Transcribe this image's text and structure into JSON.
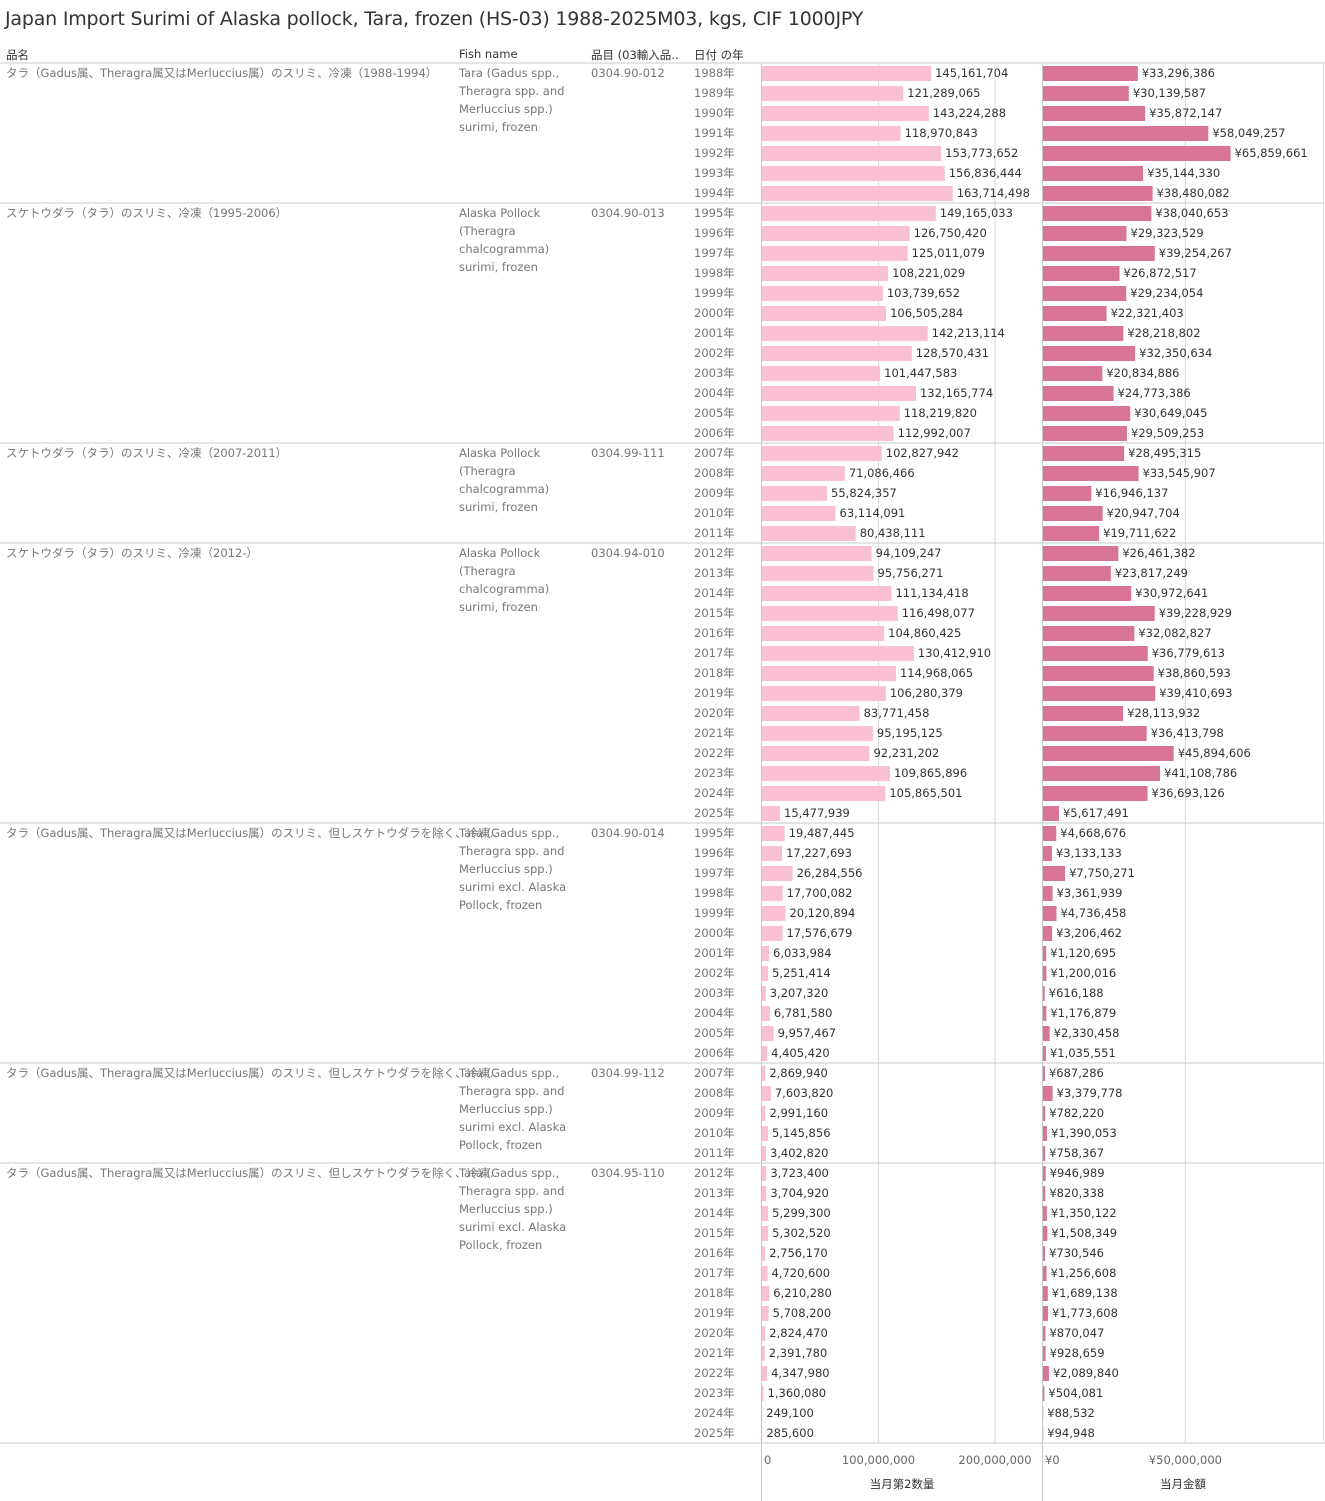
{
  "title": "Japan Import Surimi of Alaska pollock, Tara, frozen (HS-03) 1988-2025M03, kgs, CIF 1000JPY",
  "headers": {
    "name_jp": "品名",
    "fish_name": "Fish name",
    "code": "品目 (03輸入品..",
    "year": "日付 の年"
  },
  "colors": {
    "qty_bar": "#f9bfd3",
    "value_bar": "#d87495",
    "grid": "#d9d9d9"
  },
  "chart_data": {
    "type": "bar",
    "orientation": "horizontal",
    "measures": [
      {
        "name": "当月第2数量",
        "axis_ticks": [
          0,
          100000000,
          200000000
        ],
        "axis_tick_labels": [
          "0",
          "100,000,000",
          "200,000,000"
        ],
        "xlim": [
          0,
          240000000
        ]
      },
      {
        "name": "当月金額",
        "axis_ticks": [
          0,
          50000000
        ],
        "axis_tick_labels": [
          "¥0",
          "¥50,000,000"
        ],
        "xlim": [
          0,
          96000000
        ]
      }
    ],
    "groups": [
      {
        "name_jp": "タラ（Gadus属、Theragra属又はMerluccius属）のスリミ、冷凍（1988-1994）",
        "fish_name": [
          "Tara (Gadus spp.,",
          "Theragra spp. and",
          "Merluccius spp.)",
          "surimi, frozen"
        ],
        "code": "0304.90-012",
        "rows": [
          [
            "1988年",
            145161704,
            33296386,
            "145,161,704",
            "¥33,296,386"
          ],
          [
            "1989年",
            121289065,
            30139587,
            "121,289,065",
            "¥30,139,587"
          ],
          [
            "1990年",
            143224288,
            35872147,
            "143,224,288",
            "¥35,872,147"
          ],
          [
            "1991年",
            118970843,
            58049257,
            "118,970,843",
            "¥58,049,257"
          ],
          [
            "1992年",
            153773652,
            65859661,
            "153,773,652",
            "¥65,859,661"
          ],
          [
            "1993年",
            156836444,
            35144330,
            "156,836,444",
            "¥35,144,330"
          ],
          [
            "1994年",
            163714498,
            38480082,
            "163,714,498",
            "¥38,480,082"
          ]
        ]
      },
      {
        "name_jp": "スケトウダラ（タラ）のスリミ、冷凍（1995-2006）",
        "fish_name": [
          "Alaska Pollock",
          "(Theragra",
          "chalcogramma)",
          "surimi, frozen"
        ],
        "code": "0304.90-013",
        "rows": [
          [
            "1995年",
            149165033,
            38040653,
            "149,165,033",
            "¥38,040,653"
          ],
          [
            "1996年",
            126750420,
            29323529,
            "126,750,420",
            "¥29,323,529"
          ],
          [
            "1997年",
            125011079,
            39254267,
            "125,011,079",
            "¥39,254,267"
          ],
          [
            "1998年",
            108221029,
            26872517,
            "108,221,029",
            "¥26,872,517"
          ],
          [
            "1999年",
            103739652,
            29234054,
            "103,739,652",
            "¥29,234,054"
          ],
          [
            "2000年",
            106505284,
            22321403,
            "106,505,284",
            "¥22,321,403"
          ],
          [
            "2001年",
            142213114,
            28218802,
            "142,213,114",
            "¥28,218,802"
          ],
          [
            "2002年",
            128570431,
            32350634,
            "128,570,431",
            "¥32,350,634"
          ],
          [
            "2003年",
            101447583,
            20834886,
            "101,447,583",
            "¥20,834,886"
          ],
          [
            "2004年",
            132165774,
            24773386,
            "132,165,774",
            "¥24,773,386"
          ],
          [
            "2005年",
            118219820,
            30649045,
            "118,219,820",
            "¥30,649,045"
          ],
          [
            "2006年",
            112992007,
            29509253,
            "112,992,007",
            "¥29,509,253"
          ]
        ]
      },
      {
        "name_jp": "スケトウダラ（タラ）のスリミ、冷凍（2007-2011）",
        "fish_name": [
          "Alaska Pollock",
          "(Theragra",
          "chalcogramma)",
          "surimi, frozen"
        ],
        "code": "0304.99-111",
        "rows": [
          [
            "2007年",
            102827942,
            28495315,
            "102,827,942",
            "¥28,495,315"
          ],
          [
            "2008年",
            71086466,
            33545907,
            "71,086,466",
            "¥33,545,907"
          ],
          [
            "2009年",
            55824357,
            16946137,
            "55,824,357",
            "¥16,946,137"
          ],
          [
            "2010年",
            63114091,
            20947704,
            "63,114,091",
            "¥20,947,704"
          ],
          [
            "2011年",
            80438111,
            19711622,
            "80,438,111",
            "¥19,711,622"
          ]
        ]
      },
      {
        "name_jp": "スケトウダラ（タラ）のスリミ、冷凍（2012-）",
        "fish_name": [
          "Alaska Pollock",
          "(Theragra",
          "chalcogramma)",
          "surimi, frozen"
        ],
        "code": "0304.94-010",
        "rows": [
          [
            "2012年",
            94109247,
            26461382,
            "94,109,247",
            "¥26,461,382"
          ],
          [
            "2013年",
            95756271,
            23817249,
            "95,756,271",
            "¥23,817,249"
          ],
          [
            "2014年",
            111134418,
            30972641,
            "111,134,418",
            "¥30,972,641"
          ],
          [
            "2015年",
            116498077,
            39228929,
            "116,498,077",
            "¥39,228,929"
          ],
          [
            "2016年",
            104860425,
            32082827,
            "104,860,425",
            "¥32,082,827"
          ],
          [
            "2017年",
            130412910,
            36779613,
            "130,412,910",
            "¥36,779,613"
          ],
          [
            "2018年",
            114968065,
            38860593,
            "114,968,065",
            "¥38,860,593"
          ],
          [
            "2019年",
            106280379,
            39410693,
            "106,280,379",
            "¥39,410,693"
          ],
          [
            "2020年",
            83771458,
            28113932,
            "83,771,458",
            "¥28,113,932"
          ],
          [
            "2021年",
            95195125,
            36413798,
            "95,195,125",
            "¥36,413,798"
          ],
          [
            "2022年",
            92231202,
            45894606,
            "92,231,202",
            "¥45,894,606"
          ],
          [
            "2023年",
            109865896,
            41108786,
            "109,865,896",
            "¥41,108,786"
          ],
          [
            "2024年",
            105865501,
            36693126,
            "105,865,501",
            "¥36,693,126"
          ],
          [
            "2025年",
            15477939,
            5617491,
            "15,477,939",
            "¥5,617,491"
          ]
        ]
      },
      {
        "name_jp": "タラ（Gadus属、Theragra属又はMerluccius属）のスリミ、但しスケトウダラを除く、冷凍..",
        "fish_name": [
          "Tara (Gadus spp.,",
          "Theragra spp. and",
          "Merluccius spp.)",
          "surimi excl. Alaska",
          "Pollock, frozen"
        ],
        "code": "0304.90-014",
        "rows": [
          [
            "1995年",
            19487445,
            4668676,
            "19,487,445",
            "¥4,668,676"
          ],
          [
            "1996年",
            17227693,
            3133133,
            "17,227,693",
            "¥3,133,133"
          ],
          [
            "1997年",
            26284556,
            7750271,
            "26,284,556",
            "¥7,750,271"
          ],
          [
            "1998年",
            17700082,
            3361939,
            "17,700,082",
            "¥3,361,939"
          ],
          [
            "1999年",
            20120894,
            4736458,
            "20,120,894",
            "¥4,736,458"
          ],
          [
            "2000年",
            17576679,
            3206462,
            "17,576,679",
            "¥3,206,462"
          ],
          [
            "2001年",
            6033984,
            1120695,
            "6,033,984",
            "¥1,120,695"
          ],
          [
            "2002年",
            5251414,
            1200016,
            "5,251,414",
            "¥1,200,016"
          ],
          [
            "2003年",
            3207320,
            616188,
            "3,207,320",
            "¥616,188"
          ],
          [
            "2004年",
            6781580,
            1176879,
            "6,781,580",
            "¥1,176,879"
          ],
          [
            "2005年",
            9957467,
            2330458,
            "9,957,467",
            "¥2,330,458"
          ],
          [
            "2006年",
            4405420,
            1035551,
            "4,405,420",
            "¥1,035,551"
          ]
        ]
      },
      {
        "name_jp": "タラ（Gadus属、Theragra属又はMerluccius属）のスリミ、但しスケトウダラを除く、冷凍..",
        "fish_name": [
          "Tara (Gadus spp.,",
          "Theragra spp. and",
          "Merluccius spp.)",
          "surimi excl. Alaska",
          "Pollock, frozen"
        ],
        "code": "0304.99-112",
        "rows": [
          [
            "2007年",
            2869940,
            687286,
            "2,869,940",
            "¥687,286"
          ],
          [
            "2008年",
            7603820,
            3379778,
            "7,603,820",
            "¥3,379,778"
          ],
          [
            "2009年",
            2991160,
            782220,
            "2,991,160",
            "¥782,220"
          ],
          [
            "2010年",
            5145856,
            1390053,
            "5,145,856",
            "¥1,390,053"
          ],
          [
            "2011年",
            3402820,
            758367,
            "3,402,820",
            "¥758,367"
          ]
        ]
      },
      {
        "name_jp": "タラ（Gadus属、Theragra属又はMerluccius属）のスリミ、但しスケトウダラを除く、冷凍..",
        "fish_name": [
          "Tara (Gadus spp.,",
          "Theragra spp. and",
          "Merluccius spp.)",
          "surimi excl. Alaska",
          "Pollock, frozen"
        ],
        "code": "0304.95-110",
        "rows": [
          [
            "2012年",
            3723400,
            946989,
            "3,723,400",
            "¥946,989"
          ],
          [
            "2013年",
            3704920,
            820338,
            "3,704,920",
            "¥820,338"
          ],
          [
            "2014年",
            5299300,
            1350122,
            "5,299,300",
            "¥1,350,122"
          ],
          [
            "2015年",
            5302520,
            1508349,
            "5,302,520",
            "¥1,508,349"
          ],
          [
            "2016年",
            2756170,
            730546,
            "2,756,170",
            "¥730,546"
          ],
          [
            "2017年",
            4720600,
            1256608,
            "4,720,600",
            "¥1,256,608"
          ],
          [
            "2018年",
            6210280,
            1689138,
            "6,210,280",
            "¥1,689,138"
          ],
          [
            "2019年",
            5708200,
            1773608,
            "5,708,200",
            "¥1,773,608"
          ],
          [
            "2020年",
            2824470,
            870047,
            "2,824,470",
            "¥870,047"
          ],
          [
            "2021年",
            2391780,
            928659,
            "2,391,780",
            "¥928,659"
          ],
          [
            "2022年",
            4347980,
            2089840,
            "4,347,980",
            "¥2,089,840"
          ],
          [
            "2023年",
            1360080,
            504081,
            "1,360,080",
            "¥504,081"
          ],
          [
            "2024年",
            249100,
            88532,
            "249,100",
            "¥88,532"
          ],
          [
            "2025年",
            285600,
            94948,
            "285,600",
            "¥94,948"
          ]
        ]
      }
    ]
  }
}
